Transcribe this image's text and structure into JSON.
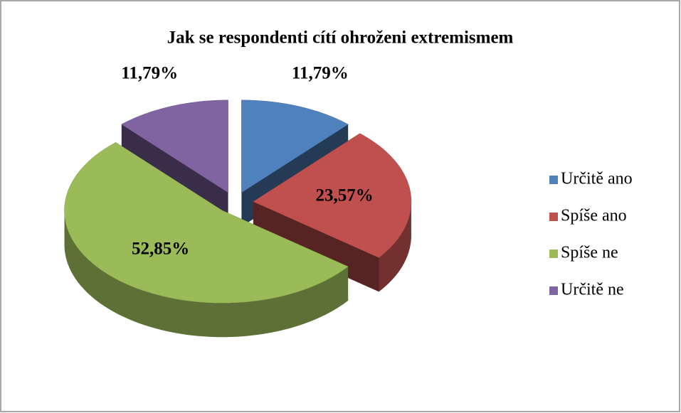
{
  "chart_data": {
    "type": "pie",
    "title": "Jak se respondenti cítí ohroženi extremismem",
    "categories": [
      "Určitě ano",
      "Spíše ano",
      "Spíše ne",
      "Určitě ne"
    ],
    "values": [
      11.79,
      23.57,
      52.85,
      11.79
    ],
    "value_labels": [
      "11,79%",
      "23,57%",
      "52,85%",
      "11,79%"
    ],
    "colors": [
      "#4f81bd",
      "#c0504d",
      "#9bbb59",
      "#8064a2"
    ],
    "legend": "right"
  }
}
